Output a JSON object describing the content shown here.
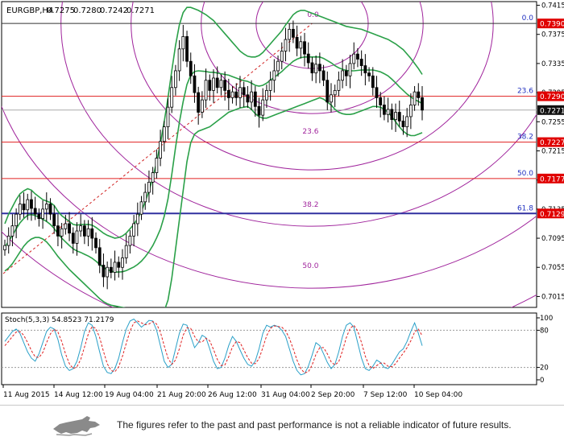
{
  "chart_data": [
    {
      "type": "candlestick",
      "title": "EURGBP,H4",
      "ohlc_readout": [
        "0.7275",
        "0.7280",
        "0.7242",
        "0.7271"
      ],
      "ylim": [
        0.7,
        0.742
      ],
      "y_ticks": [
        "0.7415",
        "0.7375",
        "0.7335",
        "0.7295",
        "0.7255",
        "0.7215",
        "0.7175",
        "0.7135",
        "0.7095",
        "0.7055",
        "0.7015"
      ],
      "x_labels": [
        "11 Aug 2015",
        "14 Aug 12:00",
        "19 Aug 04:00",
        "21 Aug 20:00",
        "26 Aug 12:00",
        "31 Aug 04:00",
        "2 Sep 20:00",
        "7 Sep 12:00",
        "10 Sep 04:00"
      ],
      "price_tags": [
        {
          "value": "0.7390",
          "level": 0.739,
          "color": "#e00000"
        },
        {
          "value": "0.7290",
          "level": 0.729,
          "color": "#e00000"
        },
        {
          "value": "0.7271",
          "level": 0.7271,
          "color": "#111111"
        },
        {
          "value": "0.7227",
          "level": 0.7227,
          "color": "#e00000"
        },
        {
          "value": "0.7177",
          "level": 0.7177,
          "color": "#e00000"
        },
        {
          "value": "0.7129",
          "level": 0.7129,
          "color": "#e00000"
        }
      ],
      "fib_retracement_levels": [
        {
          "label": "0.0",
          "level": 0.739
        },
        {
          "label": "23.6",
          "level": 0.729
        },
        {
          "label": "38.2",
          "level": 0.7227
        },
        {
          "label": "50.0",
          "level": 0.7177
        },
        {
          "label": "61.8",
          "level": 0.7129
        }
      ],
      "fib_arc_labels": [
        "0.0",
        "23.6",
        "38.2",
        "50.0"
      ],
      "close_series": [
        0.7085,
        0.7098,
        0.7112,
        0.7128,
        0.7142,
        0.7134,
        0.7148,
        0.7136,
        0.7128,
        0.7122,
        0.7135,
        0.7142,
        0.7128,
        0.7112,
        0.7098,
        0.7108,
        0.7115,
        0.7102,
        0.7088,
        0.7105,
        0.7112,
        0.7098,
        0.7108,
        0.7095,
        0.7082,
        0.7058,
        0.7042,
        0.7055,
        0.7048,
        0.7062,
        0.7055,
        0.7068,
        0.7085,
        0.7098,
        0.7115,
        0.7128,
        0.7145,
        0.7158,
        0.7172,
        0.7185,
        0.7205,
        0.7228,
        0.7248,
        0.7275,
        0.7302,
        0.7325,
        0.7355,
        0.7372,
        0.7338,
        0.7318,
        0.7295,
        0.7268,
        0.7285,
        0.7312,
        0.7298,
        0.7315,
        0.7302,
        0.7312,
        0.7298,
        0.7288,
        0.7296,
        0.7288,
        0.7302,
        0.7292,
        0.7282,
        0.7296,
        0.7276,
        0.7264,
        0.7285,
        0.7298,
        0.7312,
        0.7325,
        0.7338,
        0.7352,
        0.7368,
        0.7382,
        0.7371,
        0.7356,
        0.7365,
        0.7348,
        0.7336,
        0.7322,
        0.7334,
        0.7325,
        0.7312,
        0.7282,
        0.7292,
        0.7298,
        0.7312,
        0.7325,
        0.7318,
        0.7335,
        0.7348,
        0.7341,
        0.7332,
        0.7322,
        0.7318,
        0.7302,
        0.7288,
        0.7278,
        0.7265,
        0.7272,
        0.7258,
        0.7268,
        0.7256,
        0.7248,
        0.7262,
        0.7278,
        0.7296,
        0.7288,
        0.7271
      ],
      "bollinger_upper": [
        0.7115,
        0.7128,
        0.7138,
        0.7148,
        0.7156,
        0.716,
        0.7163,
        0.7161,
        0.7156,
        0.7152,
        0.7148,
        0.7146,
        0.7144,
        0.714,
        0.7132,
        0.7126,
        0.7122,
        0.7118,
        0.7114,
        0.7113,
        0.7114,
        0.7114,
        0.7114,
        0.7113,
        0.711,
        0.7106,
        0.7102,
        0.7099,
        0.7097,
        0.7095,
        0.7096,
        0.7098,
        0.7102,
        0.7108,
        0.7114,
        0.7122,
        0.7132,
        0.7145,
        0.716,
        0.7178,
        0.72,
        0.7225,
        0.7255,
        0.7288,
        0.7325,
        0.736,
        0.7388,
        0.7405,
        0.7412,
        0.7412,
        0.741,
        0.7408,
        0.7405,
        0.7402,
        0.7398,
        0.7394,
        0.7388,
        0.7382,
        0.7376,
        0.737,
        0.7364,
        0.7358,
        0.7352,
        0.7348,
        0.7345,
        0.7344,
        0.7344,
        0.7346,
        0.735,
        0.7356,
        0.7362,
        0.7368,
        0.7374,
        0.738,
        0.7388,
        0.7395,
        0.7402,
        0.7406,
        0.7408,
        0.7408,
        0.7406,
        0.7404,
        0.7402,
        0.74,
        0.7398,
        0.7396,
        0.7394,
        0.7392,
        0.739,
        0.7388,
        0.7386,
        0.7385,
        0.7384,
        0.7383,
        0.7382,
        0.738,
        0.7378,
        0.7376,
        0.7374,
        0.7372,
        0.737,
        0.7368,
        0.7365,
        0.7362,
        0.7358,
        0.7354,
        0.7348,
        0.7342,
        0.7335,
        0.7328,
        0.732
      ],
      "bollinger_lower": [
        0.705,
        0.7054,
        0.706,
        0.7068,
        0.7076,
        0.7084,
        0.709,
        0.7094,
        0.7096,
        0.7096,
        0.7094,
        0.709,
        0.7084,
        0.7077,
        0.707,
        0.7064,
        0.7058,
        0.7052,
        0.7047,
        0.7042,
        0.7037,
        0.7032,
        0.7027,
        0.7022,
        0.7017,
        0.7012,
        0.7008,
        0.7005,
        0.7003,
        0.7002,
        0.7001,
        0.7,
        0.6999,
        0.6998,
        0.6997,
        0.6996,
        0.6995,
        0.6994,
        0.6993,
        0.6992,
        0.6991,
        0.699,
        0.6995,
        0.701,
        0.704,
        0.708,
        0.712,
        0.716,
        0.72,
        0.7226,
        0.7238,
        0.7242,
        0.7244,
        0.7246,
        0.7248,
        0.7252,
        0.7256,
        0.726,
        0.7264,
        0.7268,
        0.727,
        0.7272,
        0.7274,
        0.7275,
        0.7276,
        0.7272,
        0.7266,
        0.7262,
        0.726,
        0.726,
        0.7262,
        0.7264,
        0.7266,
        0.7268,
        0.727,
        0.7272,
        0.7274,
        0.7276,
        0.7278,
        0.728,
        0.7282,
        0.7284,
        0.7286,
        0.7288,
        0.7286,
        0.7282,
        0.7278,
        0.7272,
        0.7268,
        0.7266,
        0.7265,
        0.7265,
        0.7266,
        0.7268,
        0.727,
        0.7272,
        0.7274,
        0.7276,
        0.7276,
        0.7275,
        0.7272,
        0.7268,
        0.7262,
        0.7255,
        0.7248,
        0.7242,
        0.7238,
        0.7236,
        0.7236,
        0.7238,
        0.724
      ]
    },
    {
      "type": "line",
      "title": "Stoch(5,3,3) 54.8523 71.2179",
      "ylim": [
        0,
        100
      ],
      "y_ticks": [
        "100",
        "80",
        "20",
        "0"
      ],
      "series": [
        {
          "values": [
            62,
            70,
            78,
            82,
            75,
            60,
            45,
            35,
            30,
            42,
            60,
            78,
            85,
            82,
            65,
            40,
            22,
            15,
            18,
            30,
            52,
            78,
            92,
            88,
            70,
            45,
            22,
            12,
            10,
            18,
            35,
            60,
            82,
            95,
            98,
            92,
            85,
            90,
            96,
            95,
            80,
            55,
            30,
            20,
            25,
            50,
            75,
            90,
            88,
            70,
            52,
            60,
            72,
            68,
            50,
            30,
            18,
            20,
            35,
            55,
            70,
            62,
            48,
            35,
            25,
            22,
            30,
            50,
            75,
            88,
            85,
            88,
            86,
            80,
            70,
            50,
            30,
            15,
            8,
            10,
            22,
            40,
            60,
            55,
            42,
            28,
            18,
            25,
            45,
            70,
            88,
            92,
            85,
            60,
            35,
            18,
            15,
            22,
            32,
            28,
            20,
            18,
            25,
            35,
            45,
            50,
            62,
            78,
            92,
            75,
            55
          ]
        },
        {
          "values": [
            55,
            62,
            70,
            77,
            78,
            72,
            60,
            47,
            37,
            36,
            44,
            60,
            74,
            82,
            77,
            62,
            42,
            26,
            18,
            21,
            33,
            53,
            74,
            86,
            83,
            68,
            46,
            26,
            15,
            13,
            21,
            38,
            59,
            79,
            92,
            95,
            92,
            89,
            90,
            94,
            90,
            77,
            55,
            35,
            25,
            32,
            50,
            72,
            84,
            83,
            70,
            61,
            61,
            67,
            63,
            49,
            33,
            23,
            24,
            37,
            53,
            62,
            60,
            48,
            36,
            27,
            26,
            34,
            52,
            71,
            83,
            87,
            86,
            85,
            79,
            67,
            50,
            32,
            18,
            11,
            13,
            24,
            41,
            52,
            52,
            42,
            29,
            24,
            29,
            47,
            68,
            83,
            88,
            79,
            60,
            38,
            23,
            18,
            23,
            27,
            27,
            22,
            21,
            26,
            35,
            43,
            52,
            63,
            77,
            82,
            71
          ]
        }
      ]
    }
  ],
  "disclaimer": "The figures refer to the past and past performance is not a reliable indicator of future results."
}
